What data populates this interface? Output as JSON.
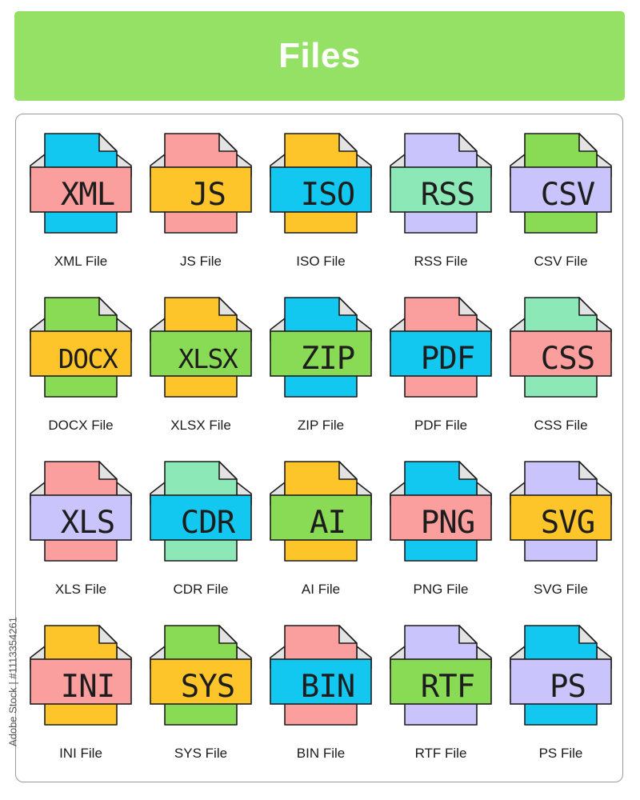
{
  "header": {
    "title": "Files"
  },
  "side_text": "Adobe Stock | #1113354261",
  "icons": [
    {
      "label": "XML",
      "caption": "XML File",
      "doc_color": "#13c8f0",
      "band_color": "#fb9e9e"
    },
    {
      "label": "JS",
      "caption": "JS File",
      "doc_color": "#fb9e9e",
      "band_color": "#fdc52a"
    },
    {
      "label": "ISO",
      "caption": "ISO File",
      "doc_color": "#fdc52a",
      "band_color": "#13c8f0"
    },
    {
      "label": "RSS",
      "caption": "RSS File",
      "doc_color": "#c9c4fb",
      "band_color": "#8de8b7"
    },
    {
      "label": "CSV",
      "caption": "CSV File",
      "doc_color": "#89da55",
      "band_color": "#c9c4fb"
    },
    {
      "label": "DOCX",
      "caption": "DOCX File",
      "doc_color": "#89da55",
      "band_color": "#fdc52a"
    },
    {
      "label": "XLSX",
      "caption": "XLSX File",
      "doc_color": "#fdc52a",
      "band_color": "#89da55"
    },
    {
      "label": "ZIP",
      "caption": "ZIP File",
      "doc_color": "#13c8f0",
      "band_color": "#89da55"
    },
    {
      "label": "PDF",
      "caption": "PDF File",
      "doc_color": "#fb9e9e",
      "band_color": "#13c8f0"
    },
    {
      "label": "CSS",
      "caption": "CSS File",
      "doc_color": "#8de8b7",
      "band_color": "#fb9e9e"
    },
    {
      "label": "XLS",
      "caption": "XLS File",
      "doc_color": "#fb9e9e",
      "band_color": "#c9c4fb"
    },
    {
      "label": "CDR",
      "caption": "CDR File",
      "doc_color": "#8de8b7",
      "band_color": "#13c8f0"
    },
    {
      "label": "AI",
      "caption": "AI File",
      "doc_color": "#fdc52a",
      "band_color": "#89da55"
    },
    {
      "label": "PNG",
      "caption": "PNG File",
      "doc_color": "#13c8f0",
      "band_color": "#fb9e9e"
    },
    {
      "label": "SVG",
      "caption": "SVG File",
      "doc_color": "#c9c4fb",
      "band_color": "#fdc52a"
    },
    {
      "label": "INI",
      "caption": "INI File",
      "doc_color": "#fdc52a",
      "band_color": "#fb9e9e"
    },
    {
      "label": "SYS",
      "caption": "SYS File",
      "doc_color": "#89da55",
      "band_color": "#fdc52a"
    },
    {
      "label": "BIN",
      "caption": "BIN File",
      "doc_color": "#fb9e9e",
      "band_color": "#13c8f0"
    },
    {
      "label": "RTF",
      "caption": "RTF File",
      "doc_color": "#c9c4fb",
      "band_color": "#89da55"
    },
    {
      "label": "PS",
      "caption": "PS File",
      "doc_color": "#13c8f0",
      "band_color": "#c9c4fb"
    }
  ]
}
